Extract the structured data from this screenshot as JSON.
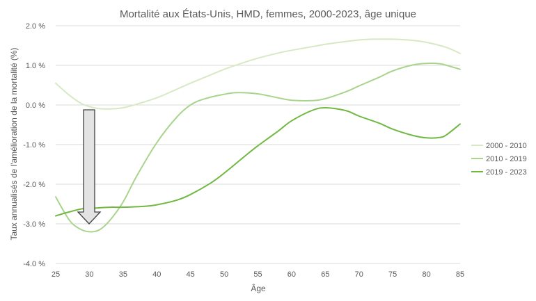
{
  "chart_data": {
    "type": "line",
    "title": "Mortalité aux États-Unis, HMD, femmes, 2000-2023, âge unique",
    "xlabel": "Âge",
    "ylabel": "Taux annualisés de l'amélioration de la mortalité (%)",
    "xlim": [
      25,
      85
    ],
    "ylim": [
      -4.0,
      2.0
    ],
    "xticks": [
      "25",
      "30",
      "35",
      "40",
      "45",
      "50",
      "55",
      "60",
      "65",
      "70",
      "75",
      "80",
      "85"
    ],
    "yticks": [
      "2.0 %",
      "1.0 %",
      "0.0 %",
      "-1.0 %",
      "-2.0 %",
      "-3.0 %",
      "-4.0 %"
    ],
    "ytick_values": [
      2.0,
      1.0,
      0.0,
      -1.0,
      -2.0,
      -3.0,
      -4.0
    ],
    "grid": true,
    "legend_position": "right",
    "series": [
      {
        "name": "2000 - 2010",
        "color": "#d7e9c4",
        "x": [
          25,
          27,
          29,
          31,
          33,
          35,
          37,
          40,
          43,
          45,
          48,
          50,
          52,
          55,
          58,
          60,
          63,
          65,
          68,
          70,
          72,
          75,
          78,
          80,
          83,
          85
        ],
        "y": [
          0.55,
          0.25,
          0.02,
          -0.08,
          -0.1,
          -0.07,
          0.02,
          0.18,
          0.4,
          0.55,
          0.76,
          0.9,
          1.02,
          1.18,
          1.31,
          1.38,
          1.47,
          1.53,
          1.6,
          1.64,
          1.66,
          1.66,
          1.63,
          1.58,
          1.45,
          1.3
        ]
      },
      {
        "name": "2010 - 2019",
        "color": "#a9d48c",
        "x": [
          25,
          27,
          28.5,
          30,
          31.5,
          33,
          35,
          37,
          40,
          43,
          45,
          47,
          50,
          52,
          55,
          58,
          60,
          63,
          65,
          68,
          70,
          73,
          75,
          78,
          80,
          82,
          83,
          85
        ],
        "y": [
          -2.32,
          -2.9,
          -3.12,
          -3.2,
          -3.15,
          -2.92,
          -2.45,
          -1.8,
          -0.95,
          -0.3,
          0.0,
          0.15,
          0.27,
          0.31,
          0.28,
          0.18,
          0.12,
          0.11,
          0.16,
          0.33,
          0.48,
          0.7,
          0.86,
          1.01,
          1.05,
          1.04,
          1.0,
          0.9
        ]
      },
      {
        "name": "2019 - 2023",
        "color": "#70b842",
        "x": [
          25,
          27,
          29,
          31,
          33,
          35,
          38,
          40,
          43,
          45,
          48,
          50,
          53,
          55,
          58,
          60,
          63,
          65,
          68,
          70,
          73,
          75,
          78,
          80,
          82,
          83,
          85
        ],
        "y": [
          -2.8,
          -2.7,
          -2.62,
          -2.6,
          -2.58,
          -2.58,
          -2.56,
          -2.52,
          -2.4,
          -2.26,
          -1.97,
          -1.72,
          -1.3,
          -1.03,
          -0.66,
          -0.4,
          -0.14,
          -0.07,
          -0.14,
          -0.28,
          -0.46,
          -0.61,
          -0.77,
          -0.83,
          -0.82,
          -0.75,
          -0.48
        ]
      }
    ]
  }
}
